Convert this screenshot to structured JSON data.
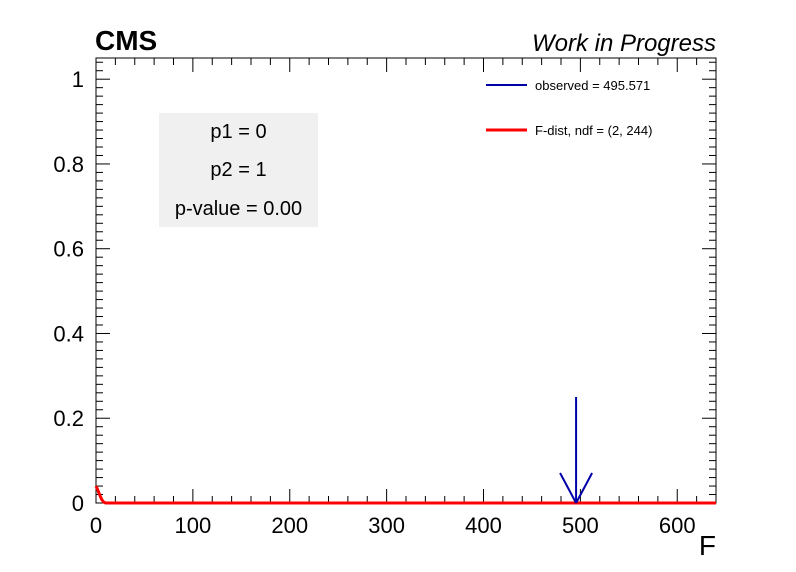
{
  "header": {
    "experiment": "CMS",
    "status": "Work in Progress"
  },
  "stats_box": {
    "lines": [
      "p1 = 0",
      "p2 = 1",
      "p-value = 0.00"
    ]
  },
  "legend": {
    "observed_label": "observed = 495.571",
    "fdist_label": "F-dist, ndf = (2, 244)"
  },
  "colors": {
    "observed": "#0000aa",
    "fdist": "#ff0000",
    "stats_box_fill": "#f0f0f0"
  },
  "chart_data": {
    "type": "line",
    "title": "",
    "xlabel": "F",
    "ylabel": "",
    "xlim": [
      0,
      640
    ],
    "ylim": [
      0,
      1.05
    ],
    "xticks": [
      0,
      100,
      200,
      300,
      400,
      500,
      600
    ],
    "yticks": [
      0,
      0.2,
      0.4,
      0.6,
      0.8,
      1
    ],
    "grid": false,
    "legend_position": "top-right",
    "series": [
      {
        "name": "F-dist, ndf = (2, 244)",
        "x": [
          0,
          2,
          4,
          6,
          8,
          10,
          20,
          50,
          100,
          200,
          300,
          400,
          500,
          640
        ],
        "y": [
          0.04,
          0.03,
          0.018,
          0.008,
          0.002,
          0.0,
          0.0,
          0.0,
          0.0,
          0.0,
          0.0,
          0.0,
          0.0,
          0.0
        ]
      }
    ],
    "observed": {
      "name": "observed = 495.571",
      "x": 495.571,
      "arrow_from_y": 0.25,
      "arrow_to_y": 0.0
    }
  }
}
